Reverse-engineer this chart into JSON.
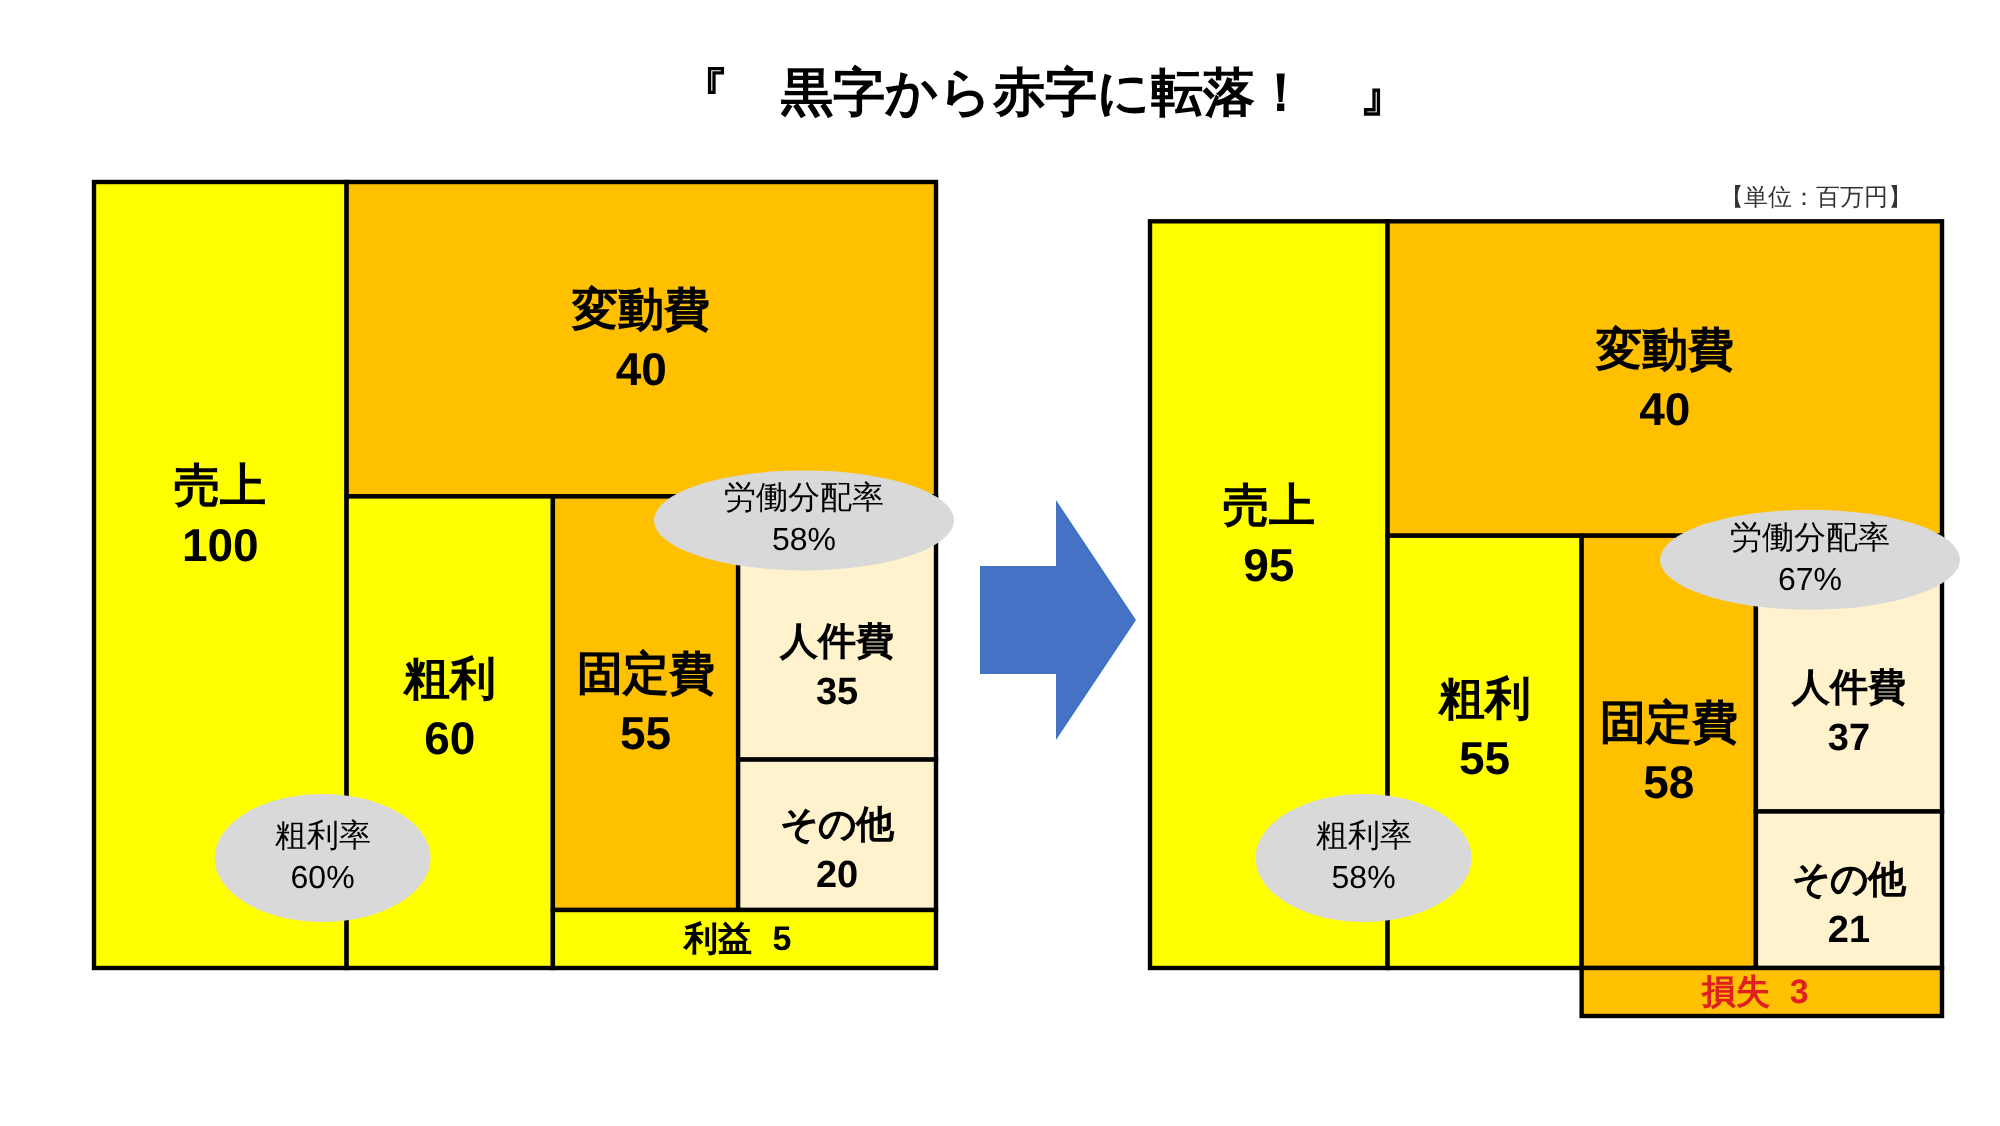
{
  "chart_data": [
    {
      "type": "other",
      "title": "『　黒字から赤字に転落！　』",
      "categories": [
        "売上",
        "変動費",
        "粗利",
        "固定費",
        "人件費",
        "その他",
        "利益"
      ],
      "values": [
        100,
        40,
        60,
        55,
        35,
        20,
        5
      ],
      "colors": [
        "#ffff00",
        "#ffc000",
        "#ffff00",
        "#ffc000",
        "#fff2cc",
        "#fff2cc",
        "#ffff00"
      ],
      "data_labels": true,
      "annotations": [
        "粗利率\n60%",
        "労働分配率\n58%"
      ]
    },
    {
      "type": "other",
      "categories": [
        "売上",
        "変動費",
        "粗利",
        "固定費",
        "人件費",
        "その他",
        "損失"
      ],
      "values": [
        95,
        40,
        55,
        58,
        37,
        21,
        3
      ],
      "colors": [
        "#ffff00",
        "#ffc000",
        "#ffff00",
        "#ffc000",
        "#fff2cc",
        "#fff2cc",
        "#ffc000"
      ],
      "data_labels": true,
      "annotations": [
        "粗利率\n58%",
        "労働分配率\n67%",
        "【単位：百万円】"
      ]
    }
  ]
}
